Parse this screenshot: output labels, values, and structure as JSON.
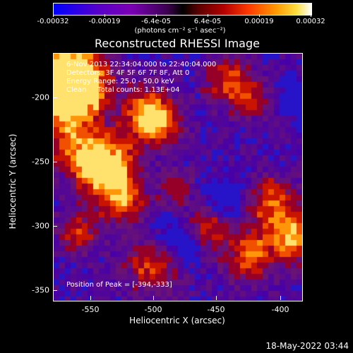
{
  "colorbar": {
    "ticks": [
      "-0.00032",
      "-0.00019",
      "-6.4e-05",
      "6.4e-05",
      "0.00019",
      "0.00032"
    ],
    "units": "(photons cm⁻² s⁻¹ asec⁻²)"
  },
  "title": "Reconstructed RHESSI Image",
  "info": {
    "time": "6-Nov-2013 22:34:04.000 to 22:40:04.000",
    "detectors": "Detectors: 3F 4F 5F 6F 7F 8F, Att 0",
    "energy": "Energy Range: 25.0 - 50.0 keV",
    "clean": "Clean     Total counts: 1.13E+04"
  },
  "peak": "Position of Peak = [-394,-333]",
  "axes": {
    "xlabel": "Heliocentric X (arcsec)",
    "ylabel": "Heliocentric Y (arcsec)",
    "xticks": [
      "-550",
      "-500",
      "-450",
      "-400"
    ],
    "yticks": [
      "-200",
      "-250",
      "-300",
      "-350"
    ]
  },
  "timestamp": "18-May-2022 03:44"
}
